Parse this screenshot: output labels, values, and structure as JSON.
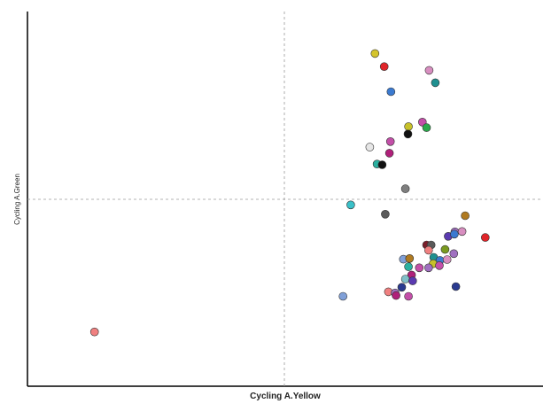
{
  "chart_data": {
    "type": "scatter",
    "title": "",
    "xlabel": "Cycling A.Yellow",
    "ylabel": "Cycling A.Green",
    "xlim": [
      0,
      1
    ],
    "ylim": [
      0,
      1
    ],
    "grid": false,
    "reference_lines": {
      "x": 0.5,
      "y": 0.5
    },
    "legend": "none",
    "points": [
      {
        "x": 0.674,
        "y": 0.888,
        "color": "#d4c42c"
      },
      {
        "x": 0.692,
        "y": 0.853,
        "color": "#e0252a"
      },
      {
        "x": 0.779,
        "y": 0.843,
        "color": "#d88ec0"
      },
      {
        "x": 0.705,
        "y": 0.786,
        "color": "#3b7ad0"
      },
      {
        "x": 0.791,
        "y": 0.81,
        "color": "#1f9090"
      },
      {
        "x": 0.766,
        "y": 0.705,
        "color": "#c34fa8"
      },
      {
        "x": 0.739,
        "y": 0.693,
        "color": "#c7c12a"
      },
      {
        "x": 0.774,
        "y": 0.69,
        "color": "#2aa84a"
      },
      {
        "x": 0.738,
        "y": 0.673,
        "color": "#111111"
      },
      {
        "x": 0.704,
        "y": 0.653,
        "color": "#c34fa8"
      },
      {
        "x": 0.664,
        "y": 0.638,
        "color": "#e6e6e6"
      },
      {
        "x": 0.702,
        "y": 0.622,
        "color": "#b0207a"
      },
      {
        "x": 0.678,
        "y": 0.593,
        "color": "#2ab0a0"
      },
      {
        "x": 0.688,
        "y": 0.591,
        "color": "#111111"
      },
      {
        "x": 0.733,
        "y": 0.527,
        "color": "#7f7f7f"
      },
      {
        "x": 0.627,
        "y": 0.484,
        "color": "#3ac0c8"
      },
      {
        "x": 0.694,
        "y": 0.459,
        "color": "#5a5a5a"
      },
      {
        "x": 0.849,
        "y": 0.455,
        "color": "#b07a20"
      },
      {
        "x": 0.829,
        "y": 0.412,
        "color": "#a070c0"
      },
      {
        "x": 0.843,
        "y": 0.413,
        "color": "#d88ec0"
      },
      {
        "x": 0.816,
        "y": 0.4,
        "color": "#5a3ab0"
      },
      {
        "x": 0.828,
        "y": 0.406,
        "color": "#3b7ad0"
      },
      {
        "x": 0.888,
        "y": 0.397,
        "color": "#e0252a"
      },
      {
        "x": 0.774,
        "y": 0.377,
        "color": "#7a1f2a"
      },
      {
        "x": 0.783,
        "y": 0.377,
        "color": "#5a5a5a"
      },
      {
        "x": 0.778,
        "y": 0.363,
        "color": "#f08080"
      },
      {
        "x": 0.81,
        "y": 0.365,
        "color": "#7a9a20"
      },
      {
        "x": 0.827,
        "y": 0.354,
        "color": "#a070c0"
      },
      {
        "x": 0.788,
        "y": 0.344,
        "color": "#1f9090"
      },
      {
        "x": 0.8,
        "y": 0.336,
        "color": "#3b7ad0"
      },
      {
        "x": 0.814,
        "y": 0.338,
        "color": "#d88ec0"
      },
      {
        "x": 0.729,
        "y": 0.339,
        "color": "#80a0d8"
      },
      {
        "x": 0.741,
        "y": 0.341,
        "color": "#b07a20"
      },
      {
        "x": 0.787,
        "y": 0.327,
        "color": "#c7c12a"
      },
      {
        "x": 0.739,
        "y": 0.319,
        "color": "#2ab0a0"
      },
      {
        "x": 0.76,
        "y": 0.316,
        "color": "#c34fa8"
      },
      {
        "x": 0.778,
        "y": 0.316,
        "color": "#a070c0"
      },
      {
        "x": 0.799,
        "y": 0.322,
        "color": "#c34fa8"
      },
      {
        "x": 0.745,
        "y": 0.297,
        "color": "#b0207a"
      },
      {
        "x": 0.733,
        "y": 0.286,
        "color": "#80c0c8"
      },
      {
        "x": 0.747,
        "y": 0.281,
        "color": "#5a3ab0"
      },
      {
        "x": 0.726,
        "y": 0.264,
        "color": "#2a3a90"
      },
      {
        "x": 0.831,
        "y": 0.266,
        "color": "#2a3a90"
      },
      {
        "x": 0.7,
        "y": 0.252,
        "color": "#f08080"
      },
      {
        "x": 0.713,
        "y": 0.249,
        "color": "#a070c0"
      },
      {
        "x": 0.715,
        "y": 0.242,
        "color": "#b0207a"
      },
      {
        "x": 0.739,
        "y": 0.24,
        "color": "#c34fa8"
      },
      {
        "x": 0.612,
        "y": 0.24,
        "color": "#80a0d8"
      },
      {
        "x": 0.13,
        "y": 0.145,
        "color": "#f08080"
      }
    ]
  }
}
